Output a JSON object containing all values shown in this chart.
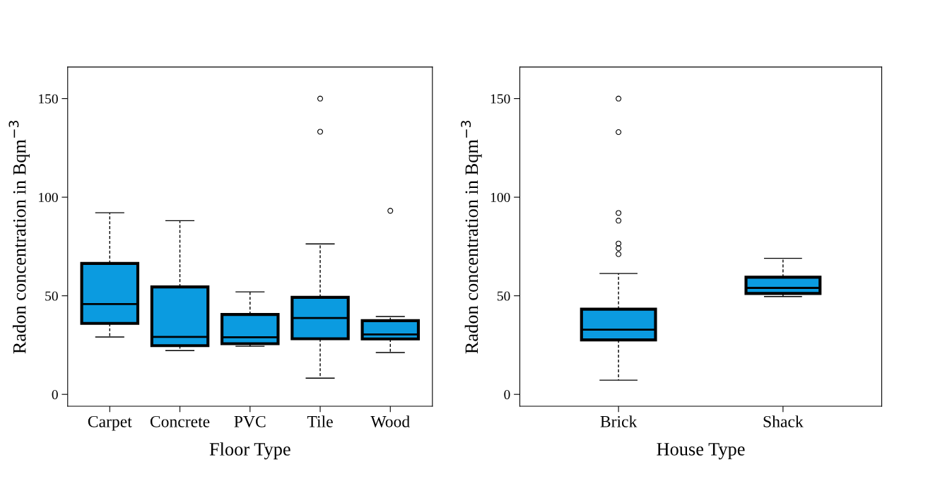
{
  "chart_data": [
    {
      "type": "box",
      "xlabel": "Floor Type",
      "ylabel": "Radon concentration in Bqm$^{−3}$",
      "categories": [
        "Carpet",
        "Concrete",
        "PVC",
        "Tile",
        "Wood"
      ],
      "color": "#0b9be0",
      "ylim": [
        -6,
        166
      ],
      "yticks": [
        0,
        50,
        100,
        150
      ],
      "grid": false,
      "boxes": [
        {
          "low": 29.1,
          "q1": 36.0,
          "median": 45.8,
          "q3": 66.4,
          "high": 92.1
        },
        {
          "low": 22.2,
          "q1": 24.7,
          "median": 29.1,
          "q3": 54.5,
          "high": 88.1
        },
        {
          "low": 24.4,
          "q1": 25.7,
          "median": 29.0,
          "q3": 40.5,
          "high": 52.0
        },
        {
          "low": 8.2,
          "q1": 28.2,
          "median": 38.7,
          "q3": 49.2,
          "high": 76.3,
          "outliers": [
            150,
            133.2
          ]
        },
        {
          "low": 21.2,
          "q1": 28.1,
          "median": 30.4,
          "q3": 37.4,
          "high": 39.5,
          "outliers": [
            93.1
          ]
        }
      ]
    },
    {
      "type": "box",
      "xlabel": "House Type",
      "ylabel": "Radon concentration in Bqm$^{−3}$",
      "categories": [
        "Brick",
        "Shack"
      ],
      "color": "#0b9be0",
      "ylim": [
        -6,
        166
      ],
      "yticks": [
        0,
        50,
        100,
        150
      ],
      "grid": false,
      "boxes": [
        {
          "low": 7.2,
          "q1": 27.6,
          "median": 32.8,
          "q3": 43.2,
          "high": 61.3,
          "outliers": [
            150,
            133.0,
            92.0,
            88.1,
            76.5,
            74.1,
            71.1
          ]
        },
        {
          "low": 49.6,
          "q1": 51.2,
          "median": 54.0,
          "q3": 59.4,
          "high": 69.0
        }
      ]
    }
  ]
}
